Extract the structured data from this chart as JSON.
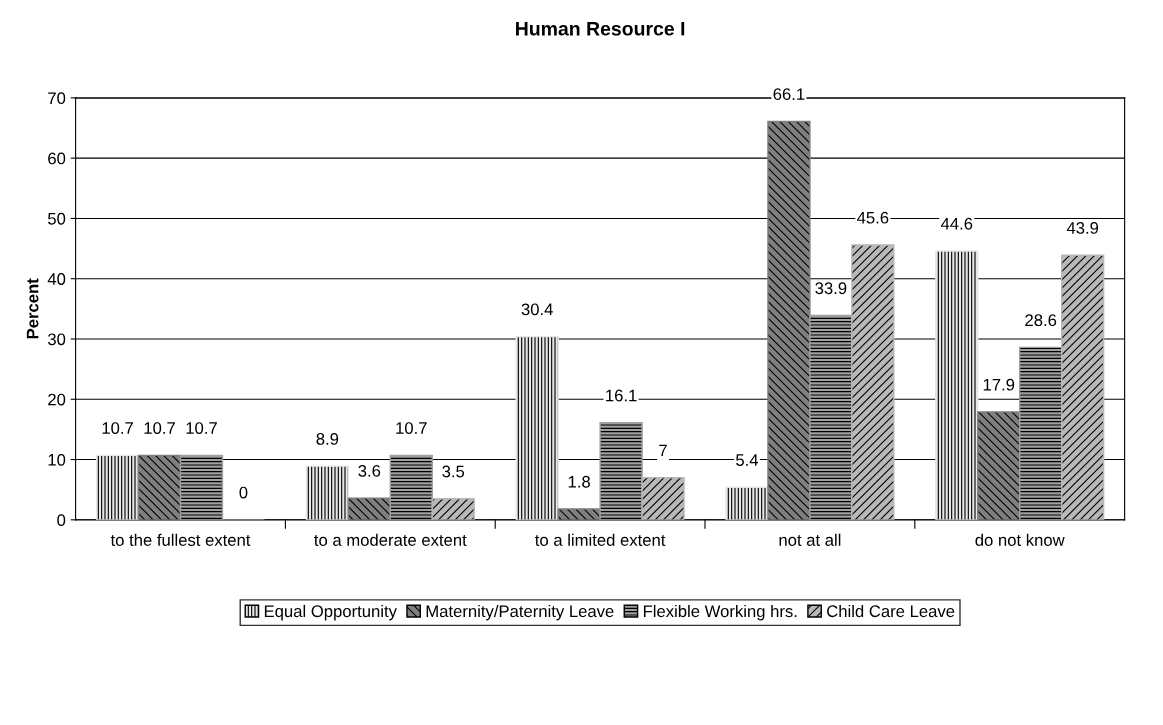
{
  "chart_data": {
    "type": "bar",
    "title": "Human Resource I",
    "ylabel": "Percent",
    "categories": [
      "to the fullest extent",
      "to a moderate extent",
      "to a limited extent",
      "not at all",
      "do not know"
    ],
    "series": [
      {
        "name": "Equal Opportunity",
        "color": "#e6e6e6",
        "values": [
          10.7,
          8.9,
          30.4,
          5.4,
          44.6
        ]
      },
      {
        "name": "Maternity/Paternity Leave",
        "color": "#7f7f7f",
        "values": [
          10.7,
          3.6,
          1.8,
          66.1,
          17.9
        ]
      },
      {
        "name": "Flexible Working hrs.",
        "color": "#a0a0a0",
        "values": [
          10.7,
          10.7,
          16.1,
          33.9,
          28.6
        ]
      },
      {
        "name": "Child Care Leave",
        "color": "#b8b8b8",
        "values": [
          0,
          3.5,
          7,
          45.6,
          43.9
        ]
      }
    ],
    "ylim": [
      0,
      70
    ],
    "yticks": [
      0,
      10,
      20,
      30,
      40,
      50,
      60,
      70
    ],
    "grid": "y",
    "legend": "bottom",
    "data_labels": true
  }
}
